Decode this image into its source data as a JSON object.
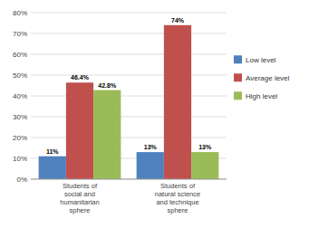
{
  "chart_data": {
    "type": "bar",
    "categories": [
      "Students of\nsocial and\nhumanitarian\nsphere",
      "Students of\nnatural science\nand technique\nsphere"
    ],
    "series": [
      {
        "name": "Low level",
        "color": "#4F81BD",
        "values": [
          11,
          13
        ],
        "value_labels": [
          "11%",
          "13%"
        ]
      },
      {
        "name": "Average level",
        "color": "#C0504D",
        "values": [
          46.4,
          74
        ],
        "value_labels": [
          "46.4%",
          "74%"
        ]
      },
      {
        "name": "High level",
        "color": "#9BBB59",
        "values": [
          42.8,
          13
        ],
        "value_labels": [
          "42.8%",
          "13%"
        ]
      }
    ],
    "ylim": [
      0,
      80
    ],
    "yticks": [
      {
        "value": 0,
        "label": "0%"
      },
      {
        "value": 10,
        "label": "10%"
      },
      {
        "value": 20,
        "label": "20%"
      },
      {
        "value": 30,
        "label": "30%"
      },
      {
        "value": 40,
        "label": "40%"
      },
      {
        "value": 50,
        "label": "50%"
      },
      {
        "value": 60,
        "label": "60%"
      },
      {
        "value": 70,
        "label": "70%"
      },
      {
        "value": 80,
        "label": "80%"
      }
    ],
    "grid": true,
    "legend": "right",
    "data_labels": true
  }
}
